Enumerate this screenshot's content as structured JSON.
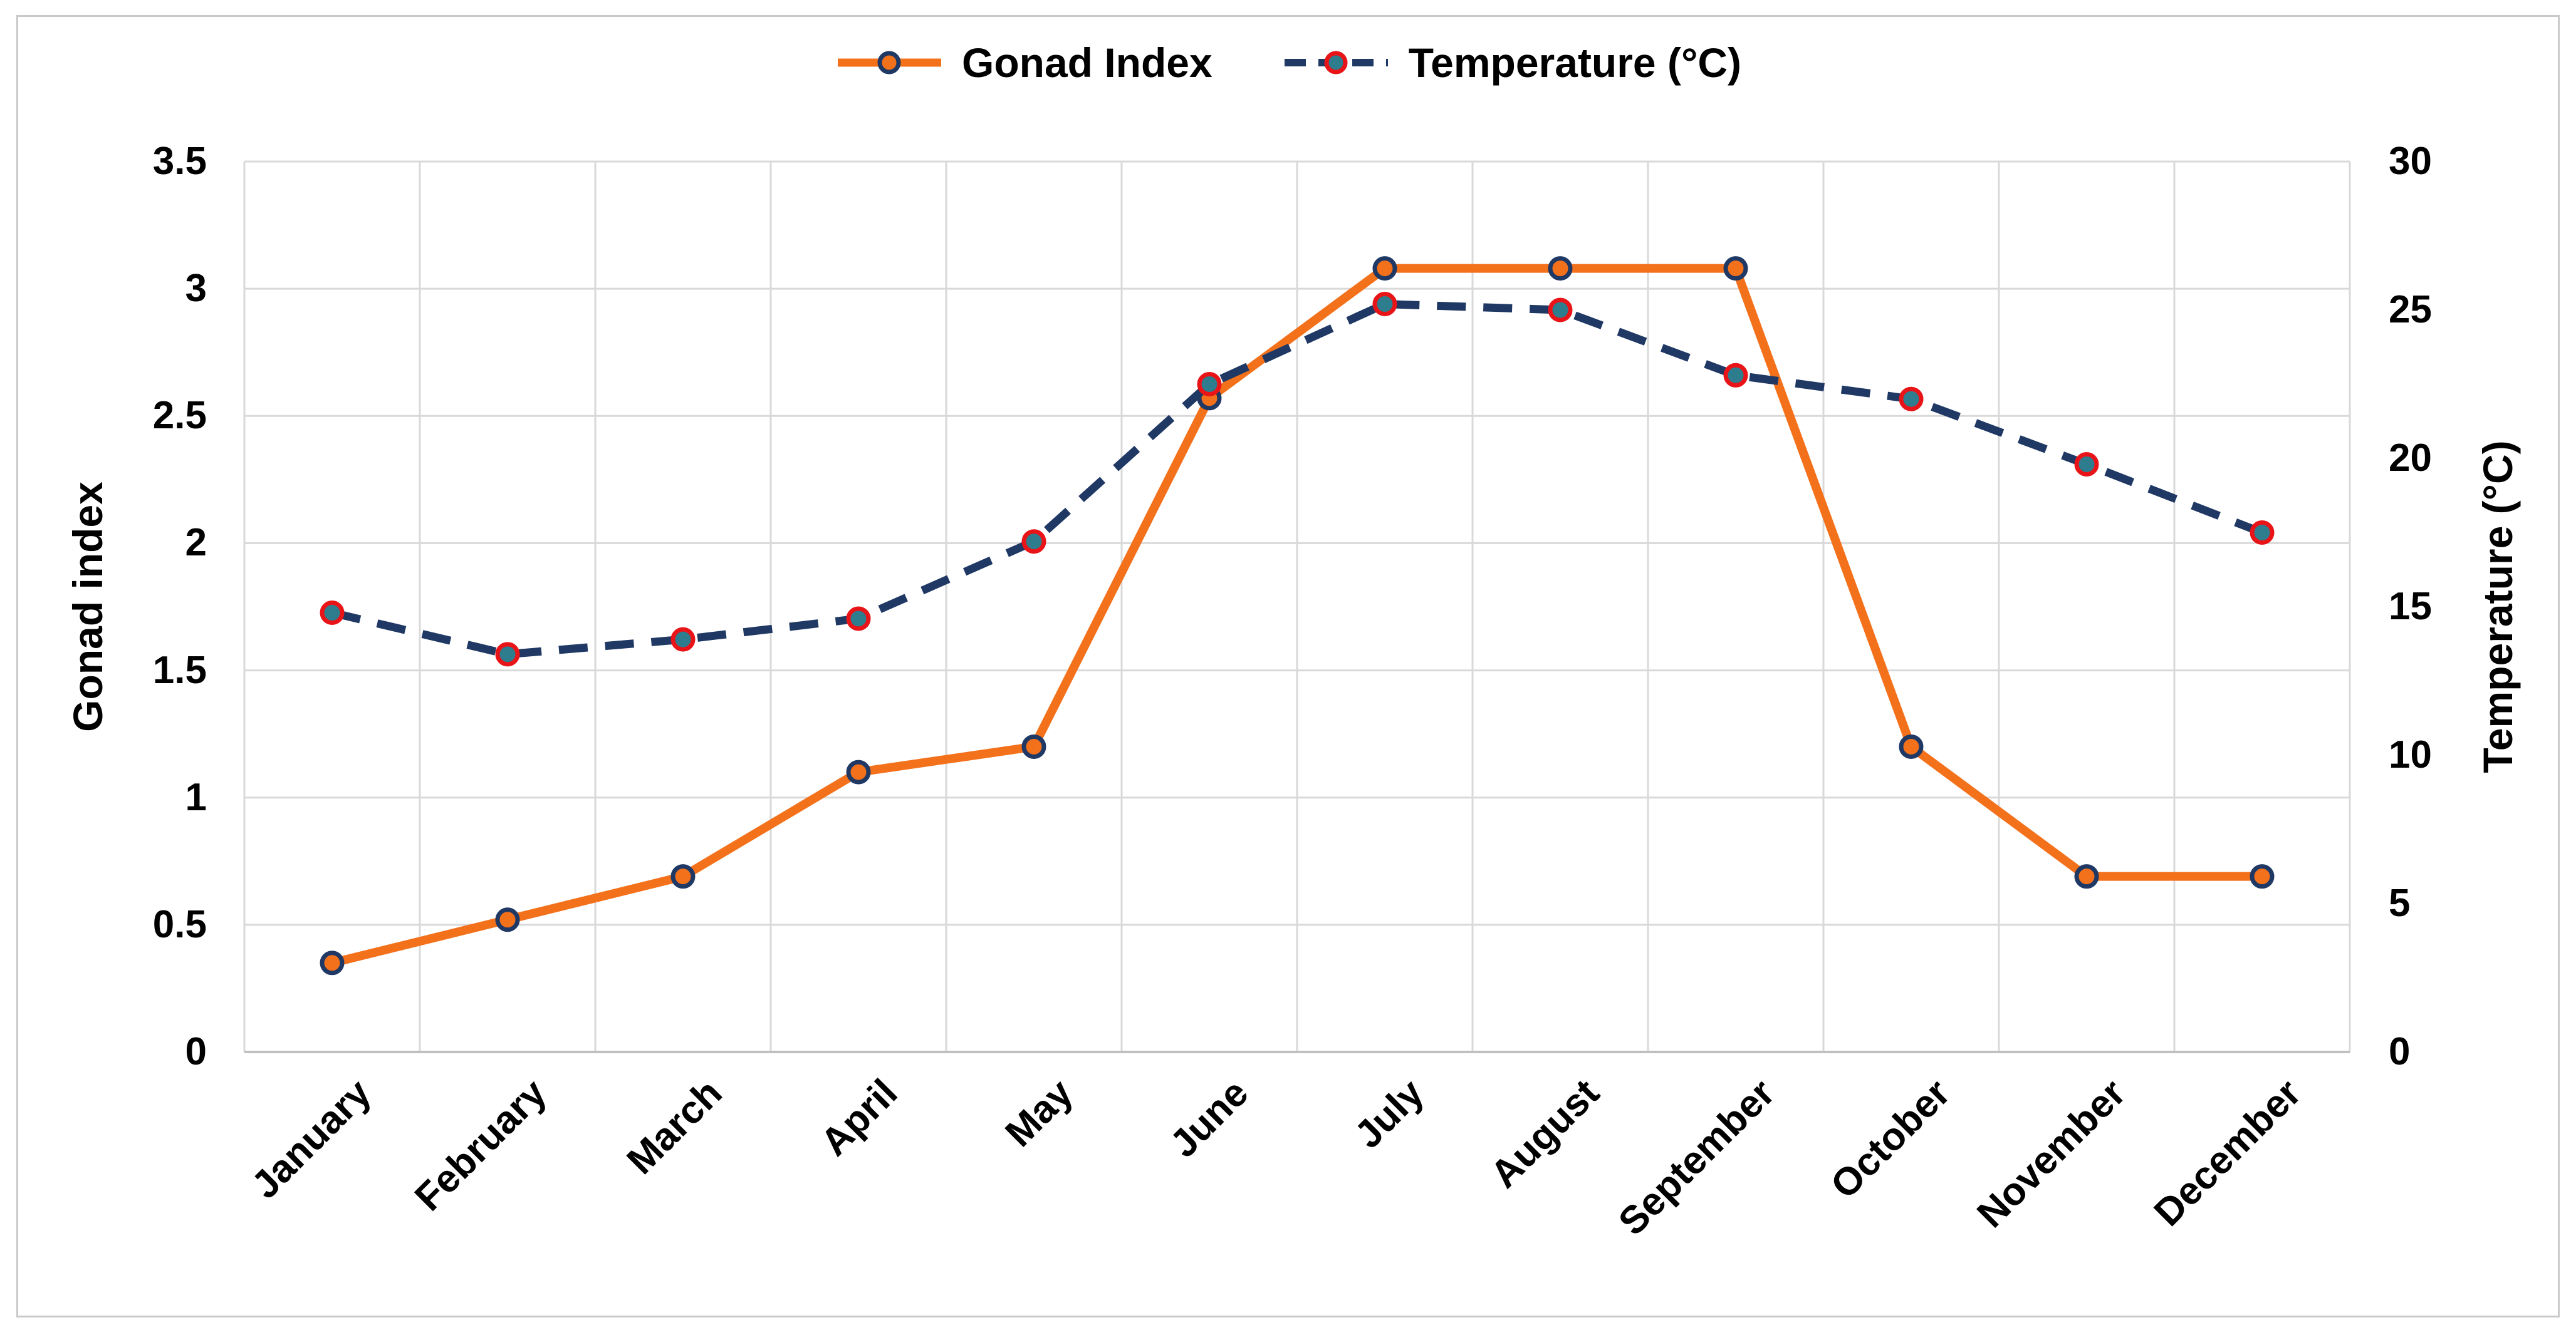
{
  "colors": {
    "gonad_line": "#F4711C",
    "gonad_marker_fill": "#F4711C",
    "gonad_marker_ring": "#1F3864",
    "temp_line": "#1F3864",
    "temp_marker_fill": "#2E7D8F",
    "temp_marker_ring": "#E81418",
    "gridline": "#D9D9D9",
    "axis_line": "#C0C0C0",
    "frame_border": "#C9C9C9",
    "text": "#000000"
  },
  "axes": {
    "left": {
      "title": "Gonad index",
      "ticks": [
        "3.5",
        "3",
        "2.5",
        "2",
        "1.5",
        "1",
        "0.5",
        "0"
      ]
    },
    "right": {
      "title": "Temperature (°C)",
      "ticks": [
        "30",
        "25",
        "20",
        "15",
        "10",
        "5",
        "0"
      ]
    }
  },
  "chart_data": {
    "type": "line",
    "categories": [
      "January",
      "February",
      "March",
      "April",
      "May",
      "June",
      "July",
      "August",
      "September",
      "October",
      "November",
      "December"
    ],
    "series": [
      {
        "name": "Gonad Index",
        "axis": "left",
        "style": "solid",
        "values": [
          0.35,
          0.52,
          0.69,
          1.1,
          1.2,
          2.57,
          3.08,
          3.08,
          3.08,
          1.2,
          0.69,
          0.69
        ]
      },
      {
        "name": "Temperature (°C)",
        "axis": "right",
        "style": "dashed",
        "values": [
          14.8,
          13.4,
          13.9,
          14.6,
          17.2,
          22.5,
          25.2,
          25.0,
          22.8,
          22.0,
          19.8,
          17.5
        ]
      }
    ],
    "y_left": {
      "min": 0,
      "max": 3.5,
      "tick_step": 0.5,
      "label": "Gonad index"
    },
    "y_right": {
      "min": 0,
      "max": 30,
      "tick_step": 5,
      "label": "Temperature (°C)"
    },
    "grid": true,
    "legend_position": "top-center",
    "x_label_rotation_deg": 45
  }
}
